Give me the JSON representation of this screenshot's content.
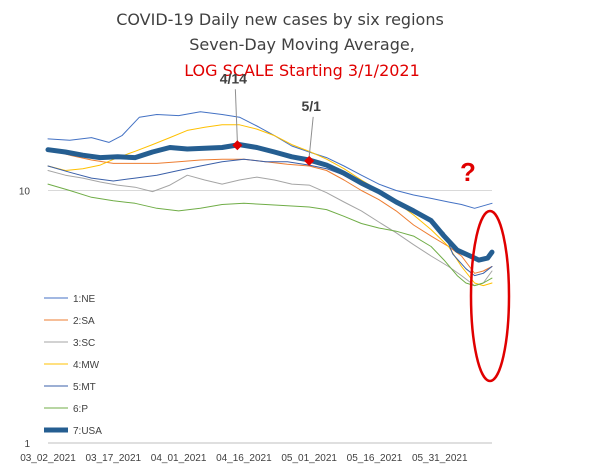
{
  "chart_data": {
    "type": "line",
    "title_lines": [
      "COVID-19 Daily new cases by six regions",
      "Seven-Day Moving Average,",
      "LOG SCALE Starting 3/1/2021"
    ],
    "title_colors": [
      "#404040",
      "#404040",
      "#e00000"
    ],
    "y_scale": "log",
    "ylim": [
      1,
      25
    ],
    "y_ticks": [
      {
        "value": 1,
        "label": "1"
      },
      {
        "value": 10,
        "label": "10"
      }
    ],
    "x_ticks": [
      "03_02_2021",
      "03_17_2021",
      "04_01_2021",
      "04_16_2021",
      "05_01_2021",
      "05_16_2021",
      "05_31_2021"
    ],
    "x_tick_days": [
      0,
      15,
      30,
      45,
      60,
      75,
      90
    ],
    "x_days_span": 102,
    "grid": "y-only",
    "legend_position": "left",
    "series": [
      {
        "name": "1:NE",
        "color": "#4472c4",
        "width": 1,
        "points": [
          [
            0,
            16.0
          ],
          [
            5,
            15.8
          ],
          [
            10,
            16.2
          ],
          [
            14,
            15.5
          ],
          [
            17,
            16.5
          ],
          [
            21,
            19.5
          ],
          [
            25,
            20.0
          ],
          [
            30,
            19.8
          ],
          [
            35,
            20.5
          ],
          [
            40,
            20.0
          ],
          [
            44,
            19.5
          ],
          [
            48,
            18.0
          ],
          [
            52,
            16.5
          ],
          [
            56,
            15.0
          ],
          [
            60,
            14.2
          ],
          [
            64,
            13.5
          ],
          [
            68,
            12.5
          ],
          [
            72,
            11.5
          ],
          [
            76,
            10.6
          ],
          [
            80,
            10.0
          ],
          [
            84,
            9.6
          ],
          [
            88,
            9.3
          ],
          [
            92,
            9.0
          ],
          [
            95,
            8.8
          ],
          [
            98,
            8.5
          ],
          [
            100,
            8.7
          ],
          [
            102,
            8.9
          ]
        ]
      },
      {
        "name": "2:SA",
        "color": "#ed7d31",
        "width": 1,
        "points": [
          [
            0,
            14.5
          ],
          [
            5,
            13.8
          ],
          [
            10,
            13.2
          ],
          [
            15,
            12.8
          ],
          [
            20,
            12.8
          ],
          [
            25,
            12.8
          ],
          [
            30,
            13.0
          ],
          [
            35,
            13.2
          ],
          [
            40,
            13.3
          ],
          [
            45,
            13.3
          ],
          [
            50,
            13.0
          ],
          [
            55,
            12.7
          ],
          [
            60,
            12.5
          ],
          [
            64,
            12.0
          ],
          [
            68,
            11.0
          ],
          [
            72,
            10.0
          ],
          [
            76,
            9.2
          ],
          [
            80,
            8.3
          ],
          [
            84,
            7.3
          ],
          [
            88,
            6.6
          ],
          [
            92,
            6.0
          ],
          [
            95,
            5.5
          ],
          [
            98,
            4.7
          ],
          [
            100,
            4.8
          ],
          [
            102,
            5.0
          ]
        ]
      },
      {
        "name": "3:SC",
        "color": "#a5a5a5",
        "width": 1,
        "points": [
          [
            0,
            12.0
          ],
          [
            4,
            11.5
          ],
          [
            8,
            11.2
          ],
          [
            12,
            10.8
          ],
          [
            16,
            10.5
          ],
          [
            20,
            10.3
          ],
          [
            24,
            9.9
          ],
          [
            28,
            10.5
          ],
          [
            32,
            11.5
          ],
          [
            36,
            11.0
          ],
          [
            40,
            10.6
          ],
          [
            44,
            11.0
          ],
          [
            48,
            11.3
          ],
          [
            52,
            11.0
          ],
          [
            56,
            10.6
          ],
          [
            60,
            10.5
          ],
          [
            64,
            9.8
          ],
          [
            68,
            9.0
          ],
          [
            72,
            8.3
          ],
          [
            76,
            7.5
          ],
          [
            80,
            6.8
          ],
          [
            84,
            6.1
          ],
          [
            88,
            5.5
          ],
          [
            92,
            5.0
          ],
          [
            95,
            4.6
          ],
          [
            98,
            4.2
          ],
          [
            100,
            4.3
          ],
          [
            102,
            4.8
          ]
        ]
      },
      {
        "name": "4:MW",
        "color": "#ffc000",
        "width": 1,
        "points": [
          [
            0,
            12.5
          ],
          [
            4,
            12.0
          ],
          [
            8,
            12.2
          ],
          [
            12,
            12.6
          ],
          [
            16,
            13.5
          ],
          [
            20,
            14.3
          ],
          [
            24,
            15.2
          ],
          [
            28,
            16.2
          ],
          [
            32,
            17.3
          ],
          [
            36,
            17.8
          ],
          [
            40,
            18.2
          ],
          [
            44,
            18.2
          ],
          [
            48,
            17.5
          ],
          [
            52,
            16.5
          ],
          [
            56,
            15.2
          ],
          [
            60,
            14.3
          ],
          [
            64,
            13.3
          ],
          [
            68,
            12.2
          ],
          [
            72,
            11.0
          ],
          [
            76,
            10.0
          ],
          [
            80,
            9.0
          ],
          [
            84,
            8.0
          ],
          [
            88,
            7.0
          ],
          [
            92,
            6.0
          ],
          [
            95,
            5.0
          ],
          [
            98,
            4.3
          ],
          [
            100,
            4.2
          ],
          [
            102,
            4.3
          ]
        ]
      },
      {
        "name": "5:MT",
        "color": "#3a5fa8",
        "width": 1,
        "points": [
          [
            0,
            12.5
          ],
          [
            5,
            11.8
          ],
          [
            10,
            11.2
          ],
          [
            15,
            10.9
          ],
          [
            20,
            11.2
          ],
          [
            25,
            11.5
          ],
          [
            30,
            12.0
          ],
          [
            35,
            12.5
          ],
          [
            40,
            13.0
          ],
          [
            45,
            13.3
          ],
          [
            50,
            13.0
          ],
          [
            55,
            13.0
          ],
          [
            60,
            12.6
          ],
          [
            64,
            12.2
          ],
          [
            68,
            11.5
          ],
          [
            72,
            10.6
          ],
          [
            76,
            9.8
          ],
          [
            80,
            9.0
          ],
          [
            84,
            8.2
          ],
          [
            88,
            7.5
          ],
          [
            91,
            6.8
          ],
          [
            93,
            5.6
          ],
          [
            96,
            4.9
          ],
          [
            98,
            4.6
          ],
          [
            100,
            4.7
          ],
          [
            102,
            5.0
          ]
        ]
      },
      {
        "name": "6:P",
        "color": "#70ad47",
        "width": 1,
        "points": [
          [
            0,
            10.6
          ],
          [
            5,
            10.0
          ],
          [
            10,
            9.4
          ],
          [
            15,
            9.1
          ],
          [
            20,
            8.9
          ],
          [
            25,
            8.5
          ],
          [
            30,
            8.3
          ],
          [
            35,
            8.5
          ],
          [
            40,
            8.8
          ],
          [
            45,
            8.9
          ],
          [
            50,
            8.8
          ],
          [
            55,
            8.7
          ],
          [
            60,
            8.6
          ],
          [
            64,
            8.4
          ],
          [
            68,
            7.9
          ],
          [
            72,
            7.4
          ],
          [
            76,
            7.1
          ],
          [
            80,
            6.9
          ],
          [
            84,
            6.6
          ],
          [
            88,
            6.0
          ],
          [
            91,
            5.3
          ],
          [
            94,
            4.6
          ],
          [
            96,
            4.3
          ],
          [
            98,
            4.2
          ],
          [
            100,
            4.3
          ],
          [
            102,
            4.5
          ]
        ]
      },
      {
        "name": "7:USA",
        "color": "#255e91",
        "width": 5,
        "points": [
          [
            0,
            14.5
          ],
          [
            4,
            14.2
          ],
          [
            8,
            13.8
          ],
          [
            12,
            13.5
          ],
          [
            16,
            13.6
          ],
          [
            20,
            13.5
          ],
          [
            24,
            14.2
          ],
          [
            28,
            14.8
          ],
          [
            32,
            14.6
          ],
          [
            36,
            14.7
          ],
          [
            40,
            14.8
          ],
          [
            44,
            15.2
          ],
          [
            48,
            14.8
          ],
          [
            52,
            14.2
          ],
          [
            56,
            13.6
          ],
          [
            60,
            13.2
          ],
          [
            64,
            12.6
          ],
          [
            68,
            11.7
          ],
          [
            72,
            10.7
          ],
          [
            76,
            9.9
          ],
          [
            80,
            9.0
          ],
          [
            84,
            8.3
          ],
          [
            88,
            7.6
          ],
          [
            91,
            6.6
          ],
          [
            94,
            5.8
          ],
          [
            97,
            5.5
          ],
          [
            99,
            5.3
          ],
          [
            101,
            5.4
          ],
          [
            102,
            5.7
          ]
        ]
      }
    ],
    "annotations": [
      {
        "label": "4/14",
        "day": 43.5,
        "value": 15.1
      },
      {
        "label": "5/1",
        "day": 60,
        "value": 13.1
      }
    ],
    "question_mark": "?",
    "highlight_day_range": [
      95,
      102
    ]
  }
}
